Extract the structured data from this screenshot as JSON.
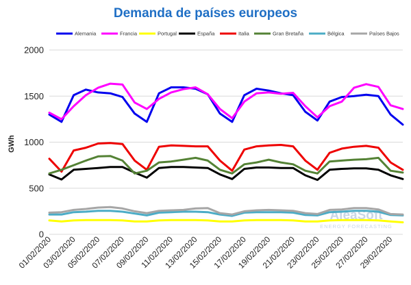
{
  "chart_data": {
    "type": "line",
    "title": "Demanda de países europeos",
    "ylabel": "GWh",
    "xlabel": "",
    "ylim": [
      0,
      2000
    ],
    "yticks": [
      0,
      500,
      1000,
      1500,
      2000
    ],
    "grid": "horizontal",
    "legend_position": "top",
    "x": [
      "01/02/2020",
      "02/02/2020",
      "03/02/2020",
      "04/02/2020",
      "05/02/2020",
      "06/02/2020",
      "07/02/2020",
      "08/02/2020",
      "09/02/2020",
      "10/02/2020",
      "11/02/2020",
      "12/02/2020",
      "13/02/2020",
      "14/02/2020",
      "15/02/2020",
      "16/02/2020",
      "17/02/2020",
      "18/02/2020",
      "19/02/2020",
      "20/02/2020",
      "21/02/2020",
      "22/02/2020",
      "23/02/2020",
      "24/02/2020",
      "25/02/2020",
      "26/02/2020",
      "27/02/2020",
      "28/02/2020",
      "29/02/2020",
      "01/03/2020"
    ],
    "xtick_labels": [
      "01/02/2020",
      "03/02/2020",
      "05/02/2020",
      "07/02/2020",
      "09/02/2020",
      "11/02/2020",
      "13/02/2020",
      "15/02/2020",
      "17/02/2020",
      "19/02/2020",
      "21/02/2020",
      "23/02/2020",
      "25/02/2020",
      "27/02/2020",
      "29/02/2020"
    ],
    "series": [
      {
        "name": "Alemania",
        "color": "#0000ee",
        "values": [
          1300,
          1220,
          1510,
          1570,
          1540,
          1530,
          1490,
          1310,
          1220,
          1530,
          1595,
          1595,
          1580,
          1520,
          1310,
          1220,
          1510,
          1580,
          1560,
          1530,
          1510,
          1330,
          1235,
          1440,
          1490,
          1500,
          1515,
          1500,
          1300,
          1190
        ]
      },
      {
        "name": "Francia",
        "color": "#ff00ff",
        "values": [
          1320,
          1250,
          1390,
          1510,
          1590,
          1635,
          1625,
          1430,
          1360,
          1470,
          1540,
          1575,
          1595,
          1520,
          1360,
          1260,
          1440,
          1530,
          1540,
          1525,
          1535,
          1390,
          1270,
          1390,
          1440,
          1590,
          1630,
          1600,
          1400,
          1360
        ]
      },
      {
        "name": "Portugal",
        "color": "#ffff00",
        "values": [
          150,
          140,
          150,
          155,
          155,
          155,
          150,
          140,
          140,
          150,
          155,
          155,
          155,
          150,
          140,
          140,
          150,
          155,
          155,
          155,
          150,
          140,
          140,
          150,
          155,
          155,
          155,
          150,
          140,
          130
        ]
      },
      {
        "name": "España",
        "color": "#000000",
        "values": [
          650,
          595,
          700,
          710,
          720,
          730,
          730,
          670,
          615,
          720,
          730,
          730,
          725,
          720,
          650,
          600,
          710,
          725,
          725,
          720,
          720,
          640,
          590,
          700,
          710,
          715,
          715,
          700,
          640,
          600
        ]
      },
      {
        "name": "Italia",
        "color": "#ee0000",
        "values": [
          820,
          680,
          910,
          940,
          985,
          990,
          980,
          800,
          700,
          950,
          965,
          960,
          955,
          955,
          800,
          690,
          920,
          955,
          965,
          970,
          955,
          800,
          700,
          885,
          930,
          950,
          960,
          940,
          780,
          700
        ]
      },
      {
        "name": "Gran Bretaña",
        "color": "#548235",
        "values": [
          660,
          700,
          750,
          800,
          845,
          850,
          800,
          660,
          690,
          780,
          790,
          810,
          830,
          800,
          700,
          660,
          760,
          780,
          810,
          780,
          760,
          690,
          660,
          790,
          800,
          810,
          815,
          830,
          690,
          670
        ]
      },
      {
        "name": "Bélgica",
        "color": "#4bacc6",
        "values": [
          215,
          215,
          240,
          245,
          255,
          255,
          245,
          225,
          205,
          235,
          240,
          245,
          245,
          240,
          215,
          200,
          235,
          240,
          240,
          240,
          235,
          210,
          205,
          240,
          245,
          255,
          255,
          245,
          210,
          205
        ]
      },
      {
        "name": "Países Bajos",
        "color": "#a6a6a6",
        "values": [
          235,
          240,
          265,
          275,
          290,
          295,
          280,
          250,
          230,
          255,
          260,
          265,
          280,
          285,
          230,
          215,
          250,
          260,
          265,
          260,
          255,
          230,
          220,
          265,
          270,
          285,
          285,
          270,
          220,
          215
        ]
      }
    ]
  },
  "watermark": {
    "main": "AleaSoft",
    "sub": "ENERGY FORECASTING"
  }
}
